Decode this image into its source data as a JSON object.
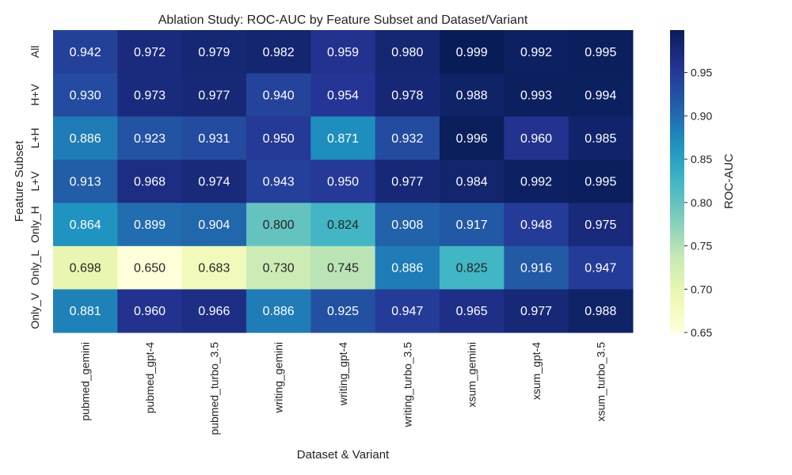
{
  "chart_data": {
    "type": "heatmap",
    "title": "Ablation Study: ROC-AUC by Feature Subset and Dataset/Variant",
    "xlabel": "Dataset & Variant",
    "ylabel": "Feature Subset",
    "colorbar_label": "ROC-AUC",
    "colormap": "YlGnBu",
    "vmin": 0.65,
    "vmax": 0.999,
    "colorbar_ticks": [
      "0.65",
      "0.70",
      "0.75",
      "0.80",
      "0.85",
      "0.90",
      "0.95"
    ],
    "rows": [
      "All",
      "H+V",
      "L+H",
      "L+V",
      "Only_H",
      "Only_L",
      "Only_V"
    ],
    "columns": [
      "pubmed_gemini",
      "pubmed_gpt-4",
      "pubmed_turbo_3.5",
      "writing_gemini",
      "writing_gpt-4",
      "writing_turbo_3.5",
      "xsum_gemini",
      "xsum_gpt-4",
      "xsum_turbo_3.5"
    ],
    "values": [
      [
        "0.942",
        "0.972",
        "0.979",
        "0.982",
        "0.959",
        "0.980",
        "0.999",
        "0.992",
        "0.995"
      ],
      [
        "0.930",
        "0.973",
        "0.977",
        "0.940",
        "0.954",
        "0.978",
        "0.988",
        "0.993",
        "0.994"
      ],
      [
        "0.886",
        "0.923",
        "0.931",
        "0.950",
        "0.871",
        "0.932",
        "0.996",
        "0.960",
        "0.985"
      ],
      [
        "0.913",
        "0.968",
        "0.974",
        "0.943",
        "0.950",
        "0.977",
        "0.984",
        "0.992",
        "0.995"
      ],
      [
        "0.864",
        "0.899",
        "0.904",
        "0.800",
        "0.824",
        "0.908",
        "0.917",
        "0.948",
        "0.975"
      ],
      [
        "0.698",
        "0.650",
        "0.683",
        "0.730",
        "0.745",
        "0.886",
        "0.825",
        "0.916",
        "0.947"
      ],
      [
        "0.881",
        "0.960",
        "0.966",
        "0.886",
        "0.925",
        "0.947",
        "0.965",
        "0.977",
        "0.988"
      ]
    ]
  }
}
